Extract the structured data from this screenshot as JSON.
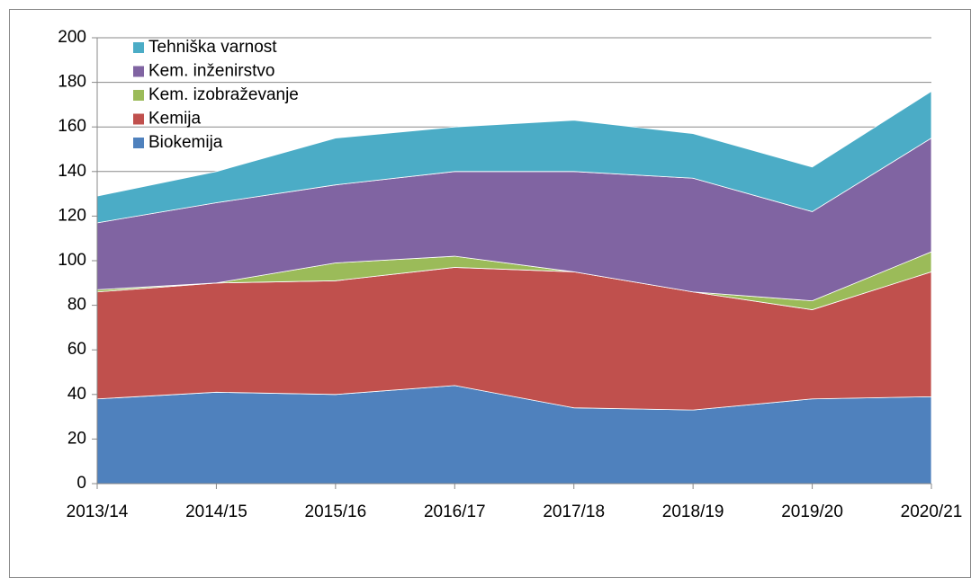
{
  "chart_data": {
    "type": "stacked_area",
    "categories": [
      "2013/14",
      "2014/15",
      "2015/16",
      "2016/17",
      "2017/18",
      "2018/19",
      "2019/20",
      "2020/21"
    ],
    "series": [
      {
        "name": "Biokemija",
        "color": "#4f81bd",
        "values": [
          38,
          41,
          40,
          44,
          34,
          33,
          38,
          39
        ]
      },
      {
        "name": "Kemija",
        "color": "#c0504d",
        "values": [
          48,
          49,
          51,
          53,
          61,
          53,
          40,
          56
        ]
      },
      {
        "name": "Kem. izobraževanje",
        "color": "#9bbb59",
        "values": [
          1,
          0,
          8,
          5,
          0,
          0,
          4,
          9
        ]
      },
      {
        "name": "Kem. inženirstvo",
        "color": "#8064a2",
        "values": [
          30,
          36,
          35,
          38,
          45,
          51,
          40,
          51
        ]
      },
      {
        "name": "Tehniška varnost",
        "color": "#4bacc6",
        "values": [
          12,
          14,
          21,
          20,
          23,
          20,
          20,
          21
        ]
      }
    ],
    "ylim": [
      0,
      200
    ],
    "yticks": [
      0,
      20,
      40,
      60,
      80,
      100,
      120,
      140,
      160,
      180,
      200
    ],
    "grid": true,
    "legend": "top-left"
  }
}
